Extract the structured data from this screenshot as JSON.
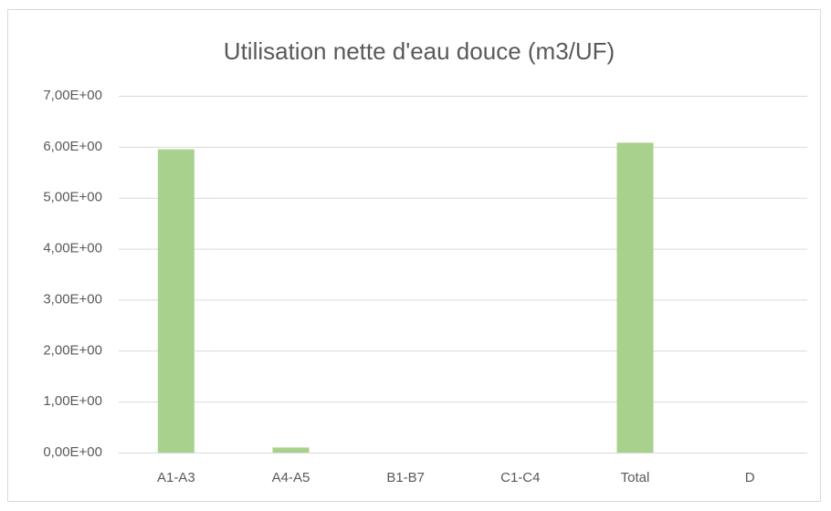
{
  "chart_data": {
    "type": "bar",
    "title": "Utilisation nette d'eau douce (m3/UF)",
    "categories": [
      "A1-A3",
      "A4-A5",
      "B1-B7",
      "C1-C4",
      "Total",
      "D"
    ],
    "values": [
      5.95,
      0.1,
      0,
      0,
      6.08,
      0
    ],
    "color": "#a9d18e",
    "ylim": [
      0,
      7
    ],
    "yticks": [
      {
        "value": 0,
        "label": "0,00E+00"
      },
      {
        "value": 1,
        "label": "1,00E+00"
      },
      {
        "value": 2,
        "label": "2,00E+00"
      },
      {
        "value": 3,
        "label": "3,00E+00"
      },
      {
        "value": 4,
        "label": "4,00E+00"
      },
      {
        "value": 5,
        "label": "5,00E+00"
      },
      {
        "value": 6,
        "label": "6,00E+00"
      },
      {
        "value": 7,
        "label": "7,00E+00"
      }
    ],
    "grid": true
  }
}
